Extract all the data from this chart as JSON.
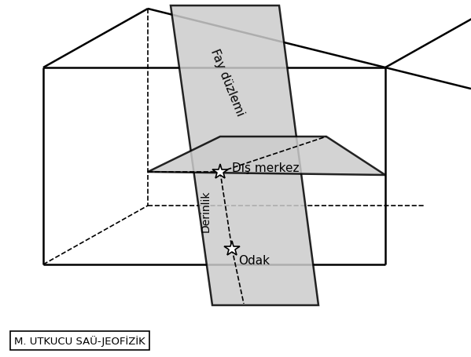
{
  "background_color": "#ffffff",
  "box_line_color": "#000000",
  "fault_plane_color": "#cccccc",
  "fault_plane_alpha": 0.85,
  "dashed_line_color": "#000000",
  "star_color": "#ffffff",
  "star_edge_color": "#000000",
  "text_fay_duzlemi": "Fay düzlemi",
  "text_dis_merkez": "Dış merkez",
  "text_derinlik": "Derinlik",
  "text_odak": "Odak",
  "text_watermark": "M. UTKUCU SAÜ-JEOFİZİK",
  "fig_width": 5.99,
  "fig_height": 4.56,
  "dpi": 100,
  "lw_solid": 1.8,
  "lw_dashed": 1.2
}
